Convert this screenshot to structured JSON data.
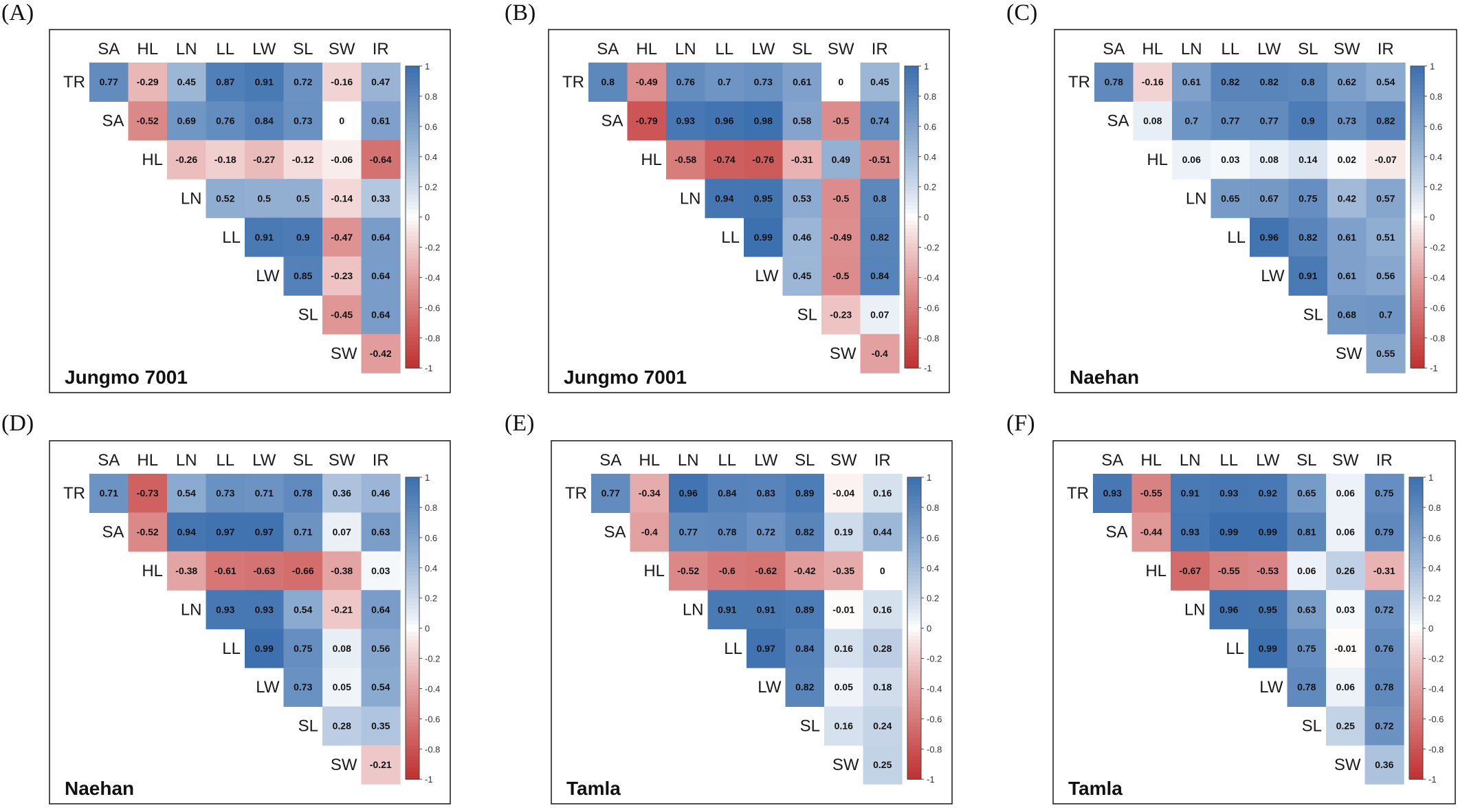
{
  "chart_data": [
    {
      "panel": "(A)",
      "type": "heatmap",
      "title": "Jungmo 7001",
      "columns": [
        "SA",
        "HL",
        "LN",
        "LL",
        "LW",
        "SL",
        "SW",
        "IR"
      ],
      "rows": [
        "TR",
        "SA",
        "HL",
        "LN",
        "LL",
        "LW",
        "SL",
        "SW"
      ],
      "values": [
        [
          0.77,
          -0.29,
          0.45,
          0.87,
          0.91,
          0.72,
          -0.16,
          0.47
        ],
        [
          null,
          -0.52,
          0.69,
          0.76,
          0.84,
          0.73,
          0,
          0.61
        ],
        [
          null,
          null,
          -0.26,
          -0.18,
          -0.27,
          -0.12,
          -0.06,
          -0.64
        ],
        [
          null,
          null,
          null,
          0.52,
          0.5,
          0.5,
          -0.14,
          0.33
        ],
        [
          null,
          null,
          null,
          null,
          0.91,
          0.9,
          -0.47,
          0.64
        ],
        [
          null,
          null,
          null,
          null,
          null,
          0.85,
          -0.23,
          0.64
        ],
        [
          null,
          null,
          null,
          null,
          null,
          null,
          -0.45,
          0.64
        ],
        [
          null,
          null,
          null,
          null,
          null,
          null,
          null,
          -0.42
        ]
      ],
      "colorbar": {
        "range": [
          -1,
          1
        ],
        "ticks": [
          "1",
          "0.8",
          "0.6",
          "0.4",
          "0.2",
          "0",
          "-0.2",
          "-0.4",
          "-0.6",
          "-0.8",
          "-1"
        ]
      }
    },
    {
      "panel": "(B)",
      "type": "heatmap",
      "title": "Jungmo 7001",
      "columns": [
        "SA",
        "HL",
        "LN",
        "LL",
        "LW",
        "SL",
        "SW",
        "IR"
      ],
      "rows": [
        "TR",
        "SA",
        "HL",
        "LN",
        "LL",
        "LW",
        "SL",
        "SW"
      ],
      "values": [
        [
          0.8,
          -0.49,
          0.76,
          0.7,
          0.73,
          0.61,
          0,
          0.45
        ],
        [
          null,
          -0.79,
          0.93,
          0.96,
          0.98,
          0.58,
          -0.5,
          0.74
        ],
        [
          null,
          null,
          -0.58,
          -0.74,
          -0.76,
          -0.31,
          0.49,
          -0.51
        ],
        [
          null,
          null,
          null,
          0.94,
          0.95,
          0.53,
          -0.5,
          0.8
        ],
        [
          null,
          null,
          null,
          null,
          0.99,
          0.46,
          -0.49,
          0.82
        ],
        [
          null,
          null,
          null,
          null,
          null,
          0.45,
          -0.5,
          0.84
        ],
        [
          null,
          null,
          null,
          null,
          null,
          null,
          -0.23,
          0.07
        ],
        [
          null,
          null,
          null,
          null,
          null,
          null,
          null,
          -0.4
        ]
      ],
      "colorbar": {
        "range": [
          -1,
          1
        ],
        "ticks": [
          "1",
          "0.8",
          "0.6",
          "0.4",
          "0.2",
          "0",
          "-0.2",
          "-0.4",
          "-0.6",
          "-0.8",
          "-1"
        ]
      }
    },
    {
      "panel": "(C)",
      "type": "heatmap",
      "title": "Naehan",
      "columns": [
        "SA",
        "HL",
        "LN",
        "LL",
        "LW",
        "SL",
        "SW",
        "IR"
      ],
      "rows": [
        "TR",
        "SA",
        "HL",
        "LN",
        "LL",
        "LW",
        "SL",
        "SW"
      ],
      "values": [
        [
          0.78,
          -0.16,
          0.61,
          0.82,
          0.82,
          0.8,
          0.62,
          0.54
        ],
        [
          null,
          0.08,
          0.7,
          0.77,
          0.77,
          0.9,
          0.73,
          0.82
        ],
        [
          null,
          null,
          0.06,
          0.03,
          0.08,
          0.14,
          0.02,
          -0.07
        ],
        [
          null,
          null,
          null,
          0.65,
          0.67,
          0.75,
          0.42,
          0.57
        ],
        [
          null,
          null,
          null,
          null,
          0.96,
          0.82,
          0.61,
          0.51
        ],
        [
          null,
          null,
          null,
          null,
          null,
          0.91,
          0.61,
          0.56
        ],
        [
          null,
          null,
          null,
          null,
          null,
          null,
          0.68,
          0.7
        ],
        [
          null,
          null,
          null,
          null,
          null,
          null,
          null,
          0.55
        ]
      ],
      "colorbar": {
        "range": [
          -1,
          1
        ],
        "ticks": [
          "1",
          "0.8",
          "0.6",
          "0.4",
          "0.2",
          "0",
          "-0.2",
          "-0.4",
          "-0.6",
          "-0.8",
          "-1"
        ]
      }
    },
    {
      "panel": "(D)",
      "type": "heatmap",
      "title": "Naehan",
      "columns": [
        "SA",
        "HL",
        "LN",
        "LL",
        "LW",
        "SL",
        "SW",
        "IR"
      ],
      "rows": [
        "TR",
        "SA",
        "HL",
        "LN",
        "LL",
        "LW",
        "SL",
        "SW"
      ],
      "values": [
        [
          0.71,
          -0.73,
          0.54,
          0.73,
          0.71,
          0.78,
          0.36,
          0.46
        ],
        [
          null,
          -0.52,
          0.94,
          0.97,
          0.97,
          0.71,
          0.07,
          0.63
        ],
        [
          null,
          null,
          -0.38,
          -0.61,
          -0.63,
          -0.66,
          -0.38,
          0.03
        ],
        [
          null,
          null,
          null,
          0.93,
          0.93,
          0.54,
          -0.21,
          0.64
        ],
        [
          null,
          null,
          null,
          null,
          0.99,
          0.75,
          0.08,
          0.56
        ],
        [
          null,
          null,
          null,
          null,
          null,
          0.73,
          0.05,
          0.54
        ],
        [
          null,
          null,
          null,
          null,
          null,
          null,
          0.28,
          0.35
        ],
        [
          null,
          null,
          null,
          null,
          null,
          null,
          null,
          -0.21
        ]
      ],
      "colorbar": {
        "range": [
          -1,
          1
        ],
        "ticks": [
          "1",
          "0.8",
          "0.6",
          "0.4",
          "0.2",
          "0",
          "-0.2",
          "-0.4",
          "-0.6",
          "-0.8",
          "-1"
        ]
      }
    },
    {
      "panel": "(E)",
      "type": "heatmap",
      "title": "Tamla",
      "columns": [
        "SA",
        "HL",
        "LN",
        "LL",
        "LW",
        "SL",
        "SW",
        "IR"
      ],
      "rows": [
        "TR",
        "SA",
        "HL",
        "LN",
        "LL",
        "LW",
        "SL",
        "SW"
      ],
      "values": [
        [
          0.77,
          -0.34,
          0.96,
          0.84,
          0.83,
          0.89,
          -0.04,
          0.16
        ],
        [
          null,
          -0.4,
          0.77,
          0.78,
          0.72,
          0.82,
          0.19,
          0.44
        ],
        [
          null,
          null,
          -0.52,
          -0.6,
          -0.62,
          -0.42,
          -0.35,
          0
        ],
        [
          null,
          null,
          null,
          0.91,
          0.91,
          0.89,
          -0.01,
          0.16
        ],
        [
          null,
          null,
          null,
          null,
          0.97,
          0.84,
          0.16,
          0.28
        ],
        [
          null,
          null,
          null,
          null,
          null,
          0.82,
          0.05,
          0.18
        ],
        [
          null,
          null,
          null,
          null,
          null,
          null,
          0.16,
          0.24
        ],
        [
          null,
          null,
          null,
          null,
          null,
          null,
          null,
          0.25
        ]
      ],
      "colorbar": {
        "range": [
          -1,
          1
        ],
        "ticks": [
          "1",
          "0.8",
          "0.6",
          "0.4",
          "0.2",
          "0",
          "-0.2",
          "-0.4",
          "-0.6",
          "-0.8",
          "-1"
        ]
      }
    },
    {
      "panel": "(F)",
      "type": "heatmap",
      "title": "Tamla",
      "columns": [
        "SA",
        "HL",
        "LN",
        "LL",
        "LW",
        "SL",
        "SW",
        "IR"
      ],
      "rows": [
        "TR",
        "SA",
        "HL",
        "LN",
        "LL",
        "LW",
        "SL",
        "SW"
      ],
      "values": [
        [
          0.93,
          -0.55,
          0.91,
          0.93,
          0.92,
          0.65,
          0.06,
          0.75
        ],
        [
          null,
          -0.44,
          0.93,
          0.99,
          0.99,
          0.81,
          0.06,
          0.79
        ],
        [
          null,
          null,
          -0.67,
          -0.55,
          -0.53,
          0.06,
          0.26,
          -0.31
        ],
        [
          null,
          null,
          null,
          0.96,
          0.95,
          0.63,
          0.03,
          0.72
        ],
        [
          null,
          null,
          null,
          null,
          0.99,
          0.75,
          -0.01,
          0.76
        ],
        [
          null,
          null,
          null,
          null,
          null,
          0.78,
          0.06,
          0.78
        ],
        [
          null,
          null,
          null,
          null,
          null,
          null,
          0.25,
          0.72
        ],
        [
          null,
          null,
          null,
          null,
          null,
          null,
          null,
          0.36
        ]
      ],
      "colorbar": {
        "range": [
          -1,
          1
        ],
        "ticks": [
          "1",
          "0.8",
          "0.6",
          "0.4",
          "0.2",
          "0",
          "-0.2",
          "-0.4",
          "-0.6",
          "-0.8",
          "-1"
        ]
      }
    }
  ],
  "colors": {
    "positive": "#3b6fae",
    "neutral": "#ffffff",
    "negative": "#c0302f"
  }
}
